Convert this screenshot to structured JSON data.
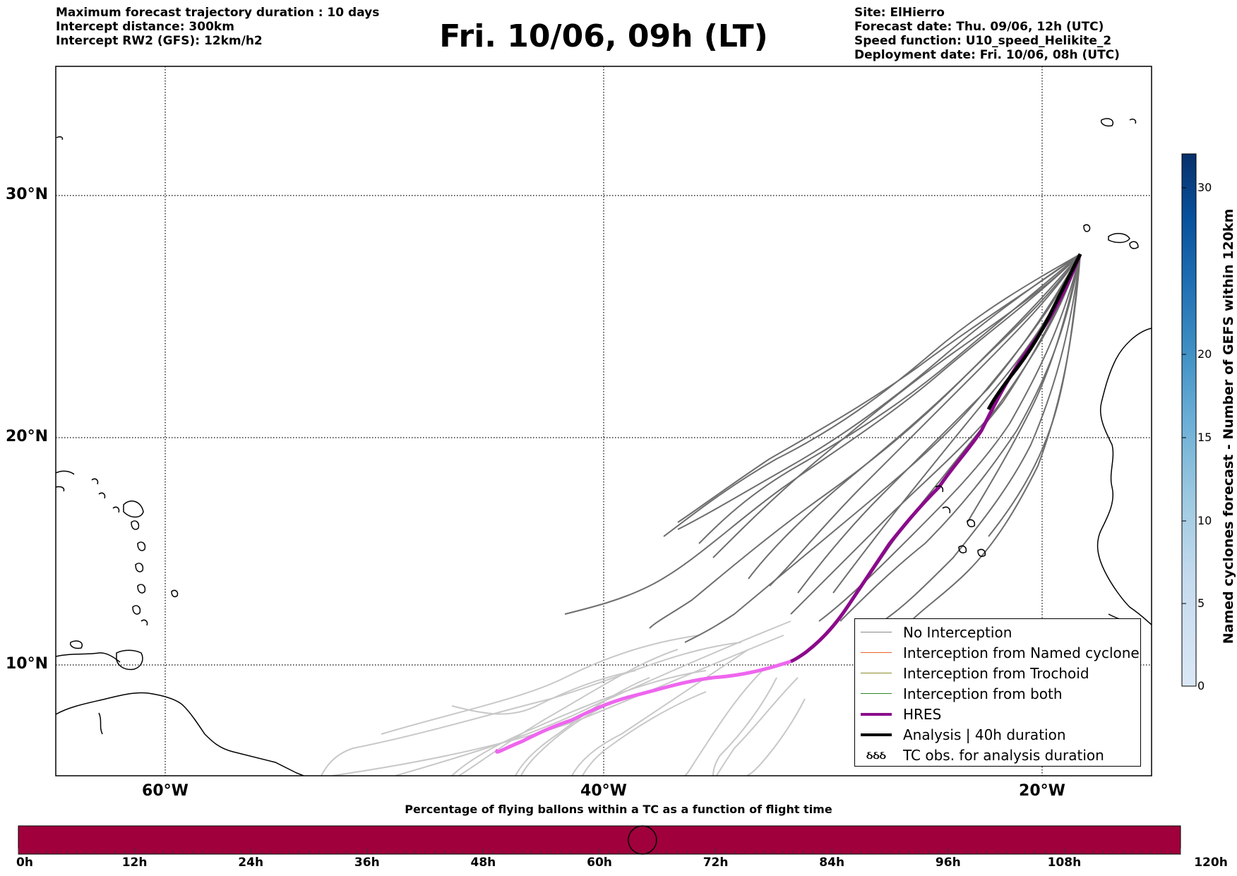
{
  "header": {
    "left_lines": [
      "Maximum forecast trajectory duration : 10 days",
      "Intercept distance: 300km",
      "Intercept RW2 (GFS):  12km/h2"
    ],
    "title": "Fri. 10/06, 09h (LT)",
    "right_lines": [
      "Site: ElHierro",
      "Forecast date: Thu. 09/06, 12h (UTC)",
      "Speed function: U10_speed_Helikite_2",
      "Deployment date: Fri. 10/06, 08h (UTC)"
    ]
  },
  "map": {
    "lat_labels": [
      "30°N",
      "20°N",
      "10°N"
    ],
    "lon_labels": [
      "60°W",
      "40°W",
      "20°W"
    ],
    "lon_range": [
      -65,
      -15
    ],
    "lat_range": [
      5.3,
      35
    ],
    "colors": {
      "ensemble_dark": "#6e6e6e",
      "ensemble_light": "#c8c8c8",
      "hres": "#8b0a8b",
      "hres_light": "#ee66ee",
      "analysis": "#000000",
      "coastline": "#000000"
    }
  },
  "legend": {
    "items": [
      {
        "label": "No Interception",
        "color": "#888888",
        "kind": "thin"
      },
      {
        "label": "Interception from Named cyclone",
        "color": "#e8622a",
        "kind": "thin"
      },
      {
        "label": "Interception from Trochoid",
        "color": "#8a8a2a",
        "kind": "thin"
      },
      {
        "label": "Interception from both",
        "color": "#2a8a2a",
        "kind": "thin"
      },
      {
        "label": "HRES",
        "color": "#8b0a8b",
        "kind": "thick"
      },
      {
        "label": "Analysis | 40h duration",
        "color": "#000000",
        "kind": "thick"
      },
      {
        "label": "TC obs. for analysis duration",
        "color": "#000000",
        "kind": "symbol",
        "symbol": "ઠઠઠ"
      }
    ]
  },
  "colorbar": {
    "title": "Named cyclones forecast - Number of GEFS within 120km",
    "ticks": [
      "0",
      "5",
      "10",
      "15",
      "20",
      "30"
    ],
    "colors": [
      "#dbe8f6",
      "#c6dbef",
      "#9ecae1",
      "#6baed6",
      "#4292c6",
      "#2171b5",
      "#08519c",
      "#08306b"
    ]
  },
  "timeline": {
    "title": "Percentage of flying ballons within a TC as a function of flight time",
    "labels": [
      "0h",
      "12h",
      "24h",
      "36h",
      "48h",
      "60h",
      "72h",
      "84h",
      "96h",
      "108h",
      "120h"
    ],
    "bar_color": "#a0003c",
    "current_fraction": 0.537
  }
}
